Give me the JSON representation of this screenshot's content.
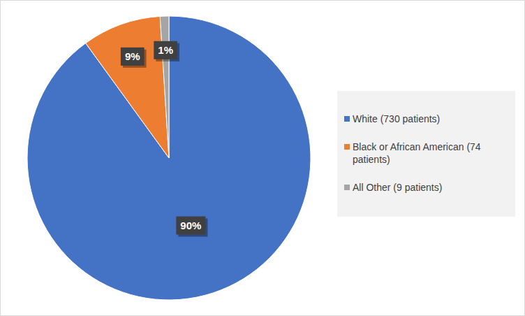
{
  "chart_data": {
    "type": "pie",
    "categories": [
      "White (730 patients)",
      "Black or African American (74 patients)",
      "All Other (9 patients)"
    ],
    "values": [
      90,
      9,
      1
    ],
    "value_labels": [
      "90%",
      "9%",
      "1%"
    ],
    "colors": [
      "#4472c4",
      "#ed7d31",
      "#a5a5a5"
    ],
    "data_labels": true,
    "legend": "right"
  }
}
